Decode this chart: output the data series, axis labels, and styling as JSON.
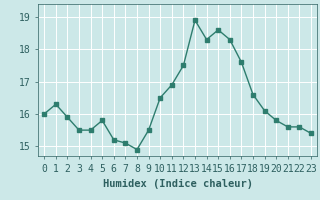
{
  "x": [
    0,
    1,
    2,
    3,
    4,
    5,
    6,
    7,
    8,
    9,
    10,
    11,
    12,
    13,
    14,
    15,
    16,
    17,
    18,
    19,
    20,
    21,
    22,
    23
  ],
  "y": [
    16.0,
    16.3,
    15.9,
    15.5,
    15.5,
    15.8,
    15.2,
    15.1,
    14.9,
    15.5,
    16.5,
    16.9,
    17.5,
    18.9,
    18.3,
    18.6,
    18.3,
    17.6,
    16.6,
    16.1,
    15.8,
    15.6,
    15.6,
    15.4
  ],
  "line_color": "#2e7d6e",
  "bg_color": "#cce8e8",
  "grid_color": "#ffffff",
  "xlabel": "Humidex (Indice chaleur)",
  "ylim": [
    14.7,
    19.4
  ],
  "yticks": [
    15,
    16,
    17,
    18,
    19
  ],
  "xticks": [
    0,
    1,
    2,
    3,
    4,
    5,
    6,
    7,
    8,
    9,
    10,
    11,
    12,
    13,
    14,
    15,
    16,
    17,
    18,
    19,
    20,
    21,
    22,
    23
  ],
  "xlabel_fontsize": 7.5,
  "tick_fontsize": 7.0,
  "line_width": 1.0,
  "marker_size": 2.5
}
